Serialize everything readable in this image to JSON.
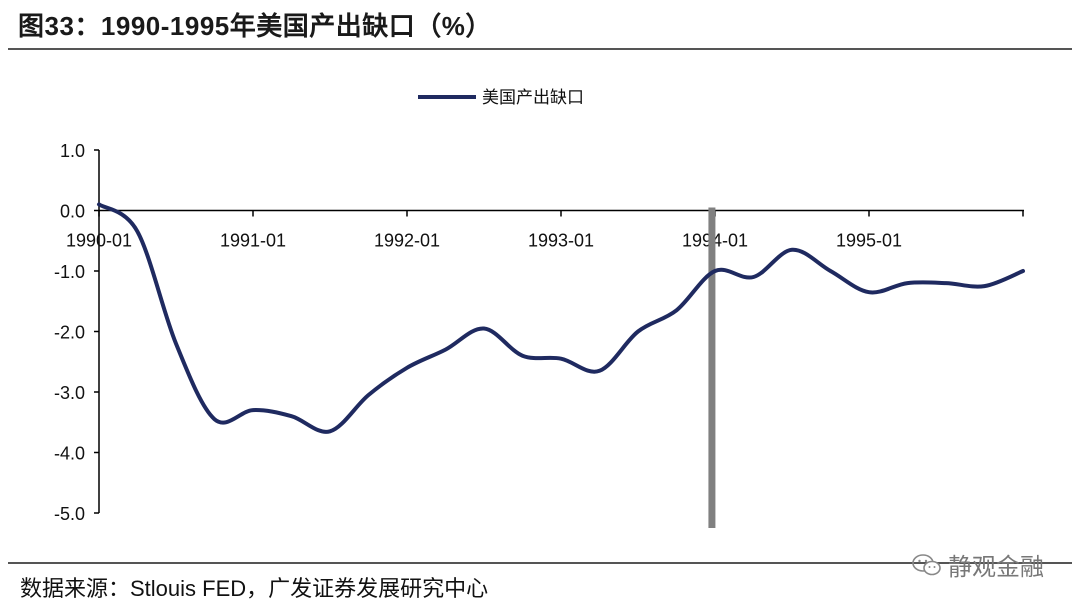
{
  "header": {
    "title": "图33：1990-1995年美国产出缺口（%）"
  },
  "footer": {
    "source": "数据来源：Stlouis FED，广发证券发展研究中心",
    "watermark": "静观金融"
  },
  "colors": {
    "series": "#1f2a60",
    "marker": "#808080",
    "axis": "#000000"
  },
  "chart_data": {
    "type": "line",
    "title": "",
    "xlabel": "",
    "ylabel": "",
    "ylim": [
      -5.0,
      1.0
    ],
    "y_ticks": [
      "1.0",
      "0.0",
      "-1.0",
      "-2.0",
      "-3.0",
      "-4.0",
      "-5.0"
    ],
    "x_ticks": [
      "1990-01",
      "1991-01",
      "1992-01",
      "1993-01",
      "1994-01",
      "1995-01"
    ],
    "legend": {
      "position": "top-center"
    },
    "vertical_marker": {
      "x": 1993.98,
      "color": "#808080"
    },
    "series": [
      {
        "name": "美国产出缺口",
        "x": [
          1990.0,
          1990.25,
          1990.5,
          1990.75,
          1991.0,
          1991.25,
          1991.5,
          1991.75,
          1992.0,
          1992.25,
          1992.5,
          1992.75,
          1993.0,
          1993.25,
          1993.5,
          1993.75,
          1994.0,
          1994.25,
          1994.5,
          1994.75,
          1995.0,
          1995.25,
          1995.5,
          1995.75,
          1996.0
        ],
        "values": [
          0.1,
          -0.35,
          -2.2,
          -3.45,
          -3.3,
          -3.4,
          -3.65,
          -3.05,
          -2.6,
          -2.3,
          -1.95,
          -2.4,
          -2.45,
          -2.65,
          -2.0,
          -1.65,
          -1.0,
          -1.1,
          -0.65,
          -1.0,
          -1.35,
          -1.2,
          -1.2,
          -1.25,
          -1.0
        ]
      }
    ]
  }
}
